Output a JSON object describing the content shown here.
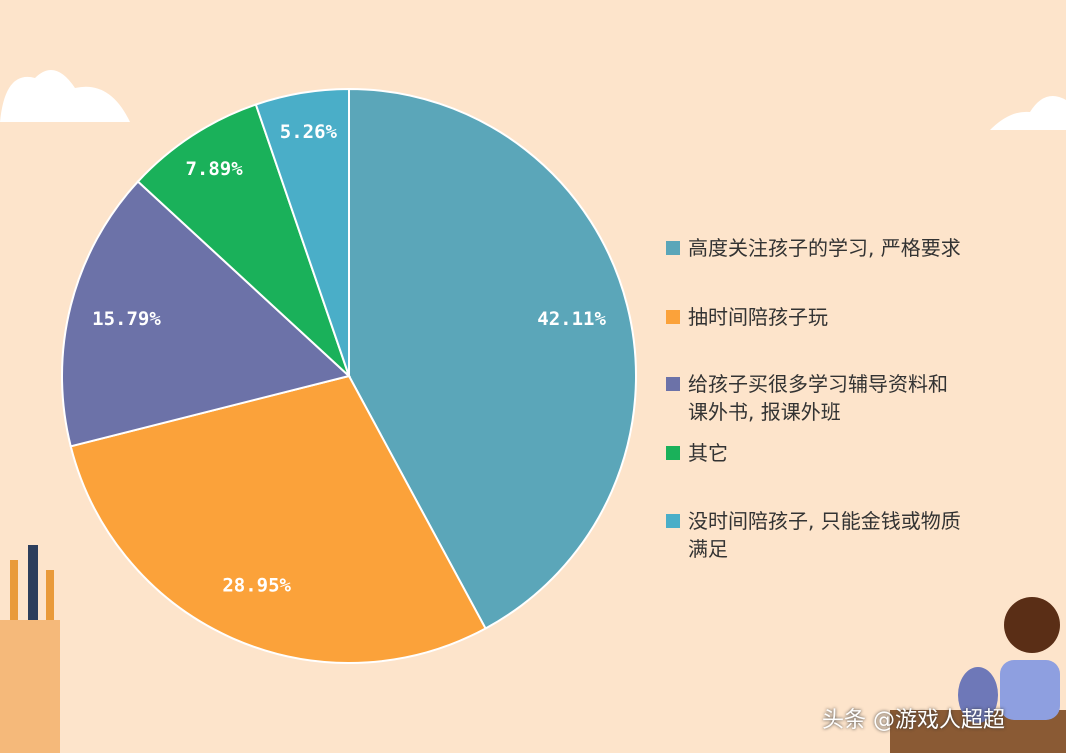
{
  "chart_data": {
    "type": "pie",
    "categories": [
      "高度关注孩子的学习, 严格要求",
      "抽时间陪孩子玩",
      "给孩子买很多学习辅导资料和课外书, 报课外班",
      "其它",
      "没时间陪孩子, 只能金钱或物质满足"
    ],
    "values": [
      42.11,
      28.95,
      15.79,
      7.89,
      5.26
    ],
    "value_labels": [
      "42.11%",
      "28.95%",
      "15.79%",
      "7.89%",
      "5.26%"
    ],
    "colors": [
      "#5ba6b9",
      "#fba23a",
      "#6c72a8",
      "#1ab15a",
      "#4aaec8"
    ],
    "legend": "right",
    "watermark": "头条 @游戏人超超"
  }
}
